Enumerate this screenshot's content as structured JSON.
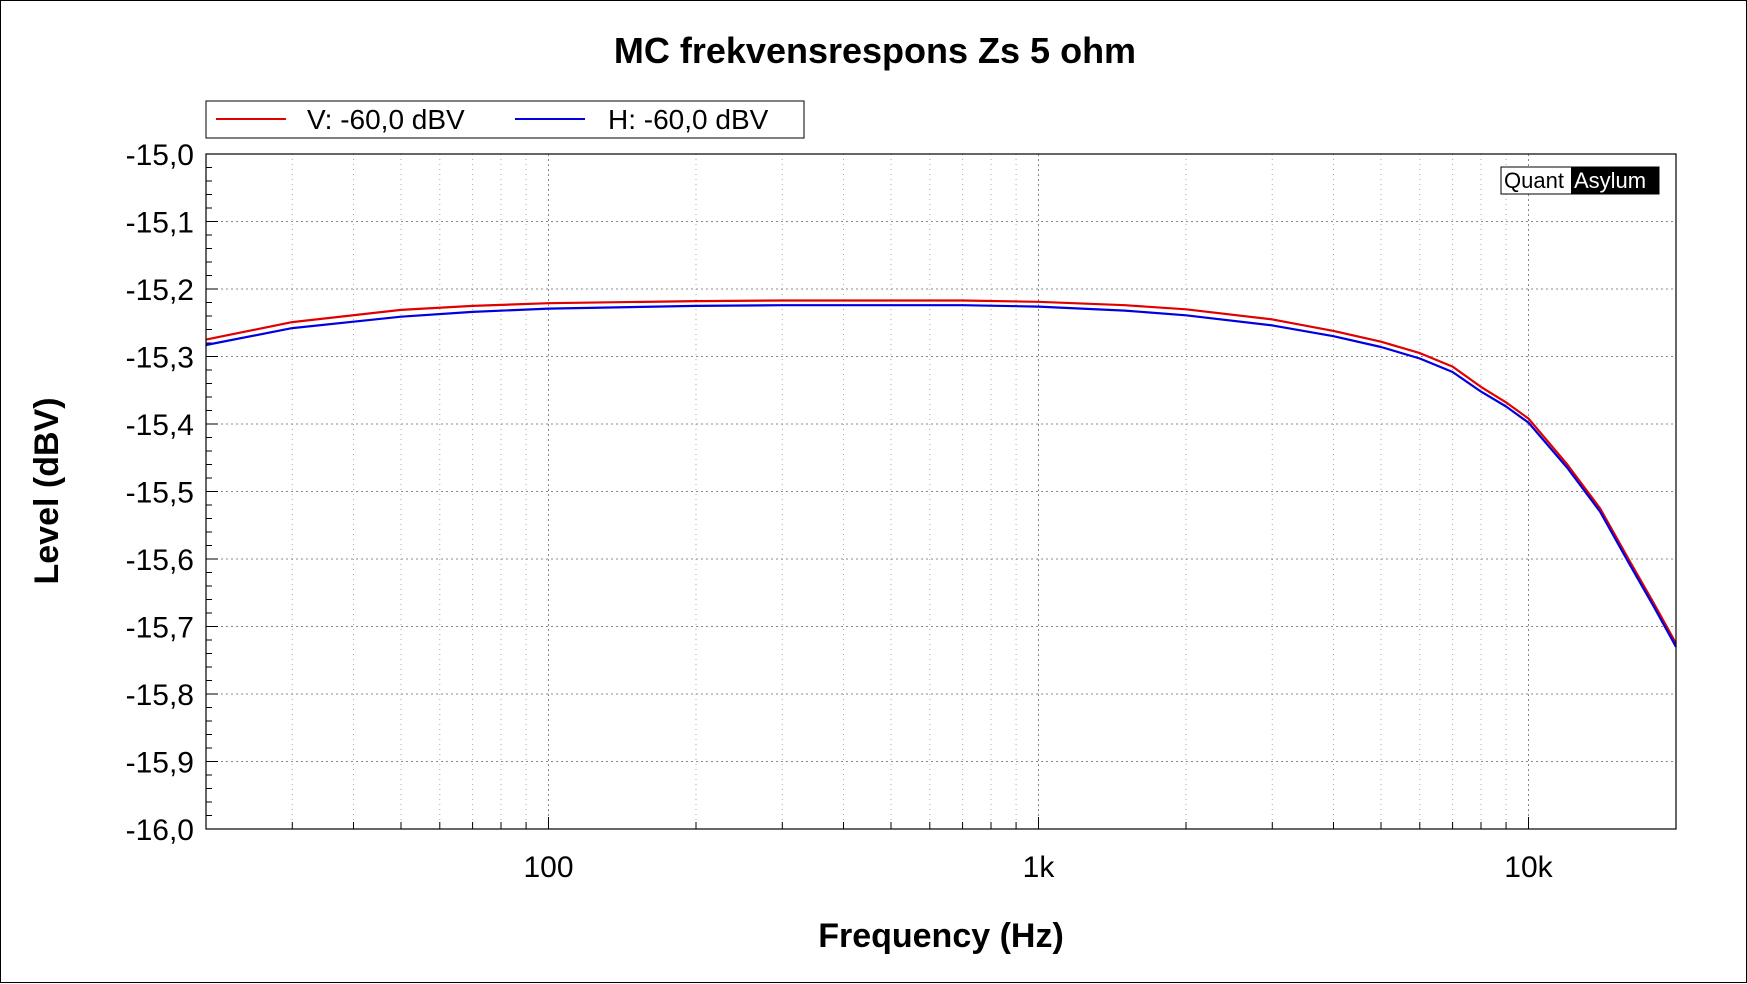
{
  "chart_data": {
    "type": "line",
    "title": "MC frekvensrespons Zs 5 ohm",
    "xlabel": "Frequency (Hz)",
    "ylabel": "Level (dBV)",
    "xscale": "log",
    "xlim": [
      20,
      20000
    ],
    "ylim": [
      -16.0,
      -15.0
    ],
    "x_ticks": [
      {
        "value": 100,
        "label": "100"
      },
      {
        "value": 1000,
        "label": "1k"
      },
      {
        "value": 10000,
        "label": "10k"
      }
    ],
    "y_ticks": [
      {
        "value": -15.0,
        "label": "-15,0"
      },
      {
        "value": -15.1,
        "label": "-15,1"
      },
      {
        "value": -15.2,
        "label": "-15,2"
      },
      {
        "value": -15.3,
        "label": "-15,3"
      },
      {
        "value": -15.4,
        "label": "-15,4"
      },
      {
        "value": -15.5,
        "label": "-15,5"
      },
      {
        "value": -15.6,
        "label": "-15,6"
      },
      {
        "value": -15.7,
        "label": "-15,7"
      },
      {
        "value": -15.8,
        "label": "-15,8"
      },
      {
        "value": -15.9,
        "label": "-15,9"
      },
      {
        "value": -16.0,
        "label": "-16,0"
      }
    ],
    "grid": true,
    "legend_position": "top-left",
    "watermark": {
      "left": "Quant",
      "right": "Asylum"
    },
    "series": [
      {
        "name": "V: -60,0 dBV",
        "color": "#e00000",
        "x": [
          20,
          30,
          50,
          70,
          100,
          200,
          300,
          500,
          700,
          1000,
          1500,
          2000,
          3000,
          4000,
          5000,
          6000,
          7000,
          8000,
          9000,
          10000,
          12000,
          14000,
          16000,
          18000,
          20000
        ],
        "y": [
          -15.275,
          -15.249,
          -15.231,
          -15.225,
          -15.221,
          -15.218,
          -15.217,
          -15.217,
          -15.217,
          -15.219,
          -15.224,
          -15.23,
          -15.245,
          -15.262,
          -15.278,
          -15.295,
          -15.315,
          -15.345,
          -15.368,
          -15.392,
          -15.46,
          -15.525,
          -15.6,
          -15.665,
          -15.725
        ]
      },
      {
        "name": "H: -60,0 dBV",
        "color": "#0000e0",
        "x": [
          20,
          30,
          50,
          70,
          100,
          200,
          300,
          500,
          700,
          1000,
          1500,
          2000,
          3000,
          4000,
          5000,
          6000,
          7000,
          8000,
          9000,
          10000,
          12000,
          14000,
          16000,
          18000,
          20000
        ],
        "y": [
          -15.283,
          -15.258,
          -15.241,
          -15.234,
          -15.229,
          -15.225,
          -15.224,
          -15.224,
          -15.224,
          -15.226,
          -15.232,
          -15.239,
          -15.254,
          -15.27,
          -15.286,
          -15.303,
          -15.323,
          -15.352,
          -15.374,
          -15.398,
          -15.465,
          -15.53,
          -15.605,
          -15.67,
          -15.73
        ]
      }
    ]
  }
}
